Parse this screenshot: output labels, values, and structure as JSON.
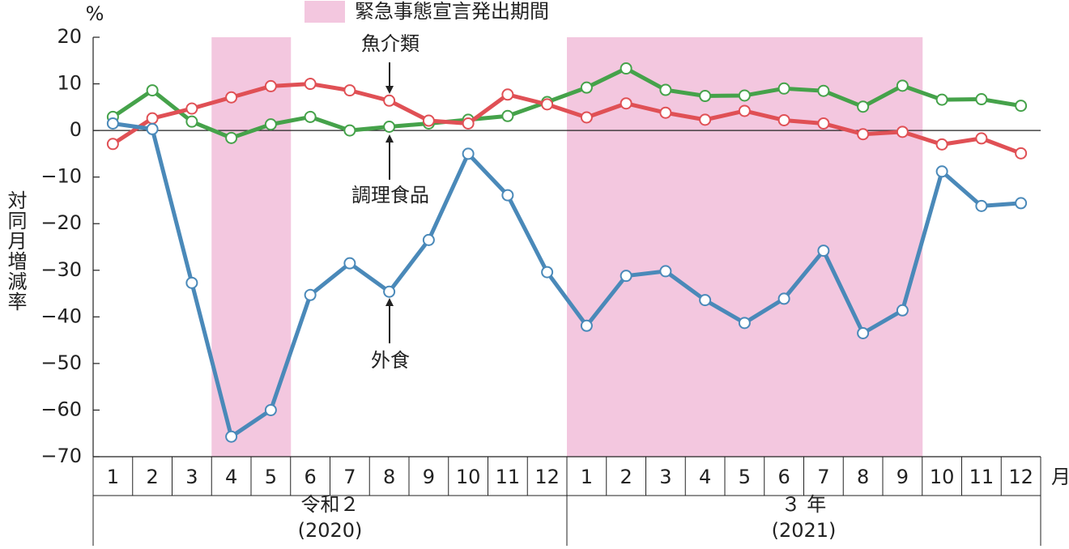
{
  "chart_data": {
    "type": "line",
    "legend_label": "緊急事態宣言発出期間",
    "shade_color": "#f3c7df",
    "shaded": [
      false,
      false,
      false,
      true,
      true,
      false,
      false,
      false,
      false,
      false,
      false,
      false,
      true,
      true,
      true,
      true,
      true,
      true,
      true,
      true,
      true,
      false,
      false,
      false
    ],
    "y_label": "対同月増減率",
    "y_unit": "%",
    "x_unit": "月",
    "categories": [
      "1",
      "2",
      "3",
      "4",
      "5",
      "6",
      "7",
      "8",
      "9",
      "10",
      "11",
      "12",
      "1",
      "2",
      "3",
      "4",
      "5",
      "6",
      "7",
      "8",
      "9",
      "10",
      "11",
      "12"
    ],
    "groups": [
      {
        "label": "令和２",
        "sub": "(2020)"
      },
      {
        "label": "３ 年",
        "sub": "(2021)"
      }
    ],
    "ylim": [
      -70,
      20
    ],
    "yticks": [
      {
        "value": -70,
        "label": "−70"
      },
      {
        "value": -60,
        "label": "−60"
      },
      {
        "value": -50,
        "label": "−50"
      },
      {
        "value": -40,
        "label": "−40"
      },
      {
        "value": -30,
        "label": "−30"
      },
      {
        "value": -20,
        "label": "−20"
      },
      {
        "value": -10,
        "label": "−10"
      },
      0,
      10,
      20
    ],
    "series": [
      {
        "name": "調理食品",
        "color": "#45a24a",
        "values": [
          2.9,
          8.6,
          1.9,
          -1.6,
          1.3,
          2.9,
          0.0,
          0.8,
          1.5,
          2.3,
          3.1,
          6.1,
          9.2,
          13.3,
          8.7,
          7.4,
          7.5,
          9.0,
          8.5,
          5.1,
          9.6,
          6.6,
          6.7,
          5.3
        ]
      },
      {
        "name": "魚介類",
        "color": "#e05055",
        "values": [
          -2.9,
          2.6,
          4.7,
          7.1,
          9.5,
          10.0,
          8.6,
          6.4,
          2.1,
          1.5,
          7.7,
          5.6,
          2.8,
          5.8,
          3.8,
          2.3,
          4.2,
          2.2,
          1.5,
          -0.8,
          -0.3,
          -3.0,
          -1.7,
          -4.9
        ]
      },
      {
        "name": "外食",
        "color": "#4a89b9",
        "values": [
          1.5,
          0.3,
          -32.7,
          -65.7,
          -60.0,
          -35.3,
          -28.5,
          -34.6,
          -23.5,
          -5.0,
          -13.9,
          -30.4,
          -41.9,
          -31.2,
          -30.2,
          -36.4,
          -41.3,
          -36.1,
          -25.8,
          -43.5,
          -38.6,
          -8.8,
          -16.2,
          -15.6
        ]
      }
    ]
  }
}
